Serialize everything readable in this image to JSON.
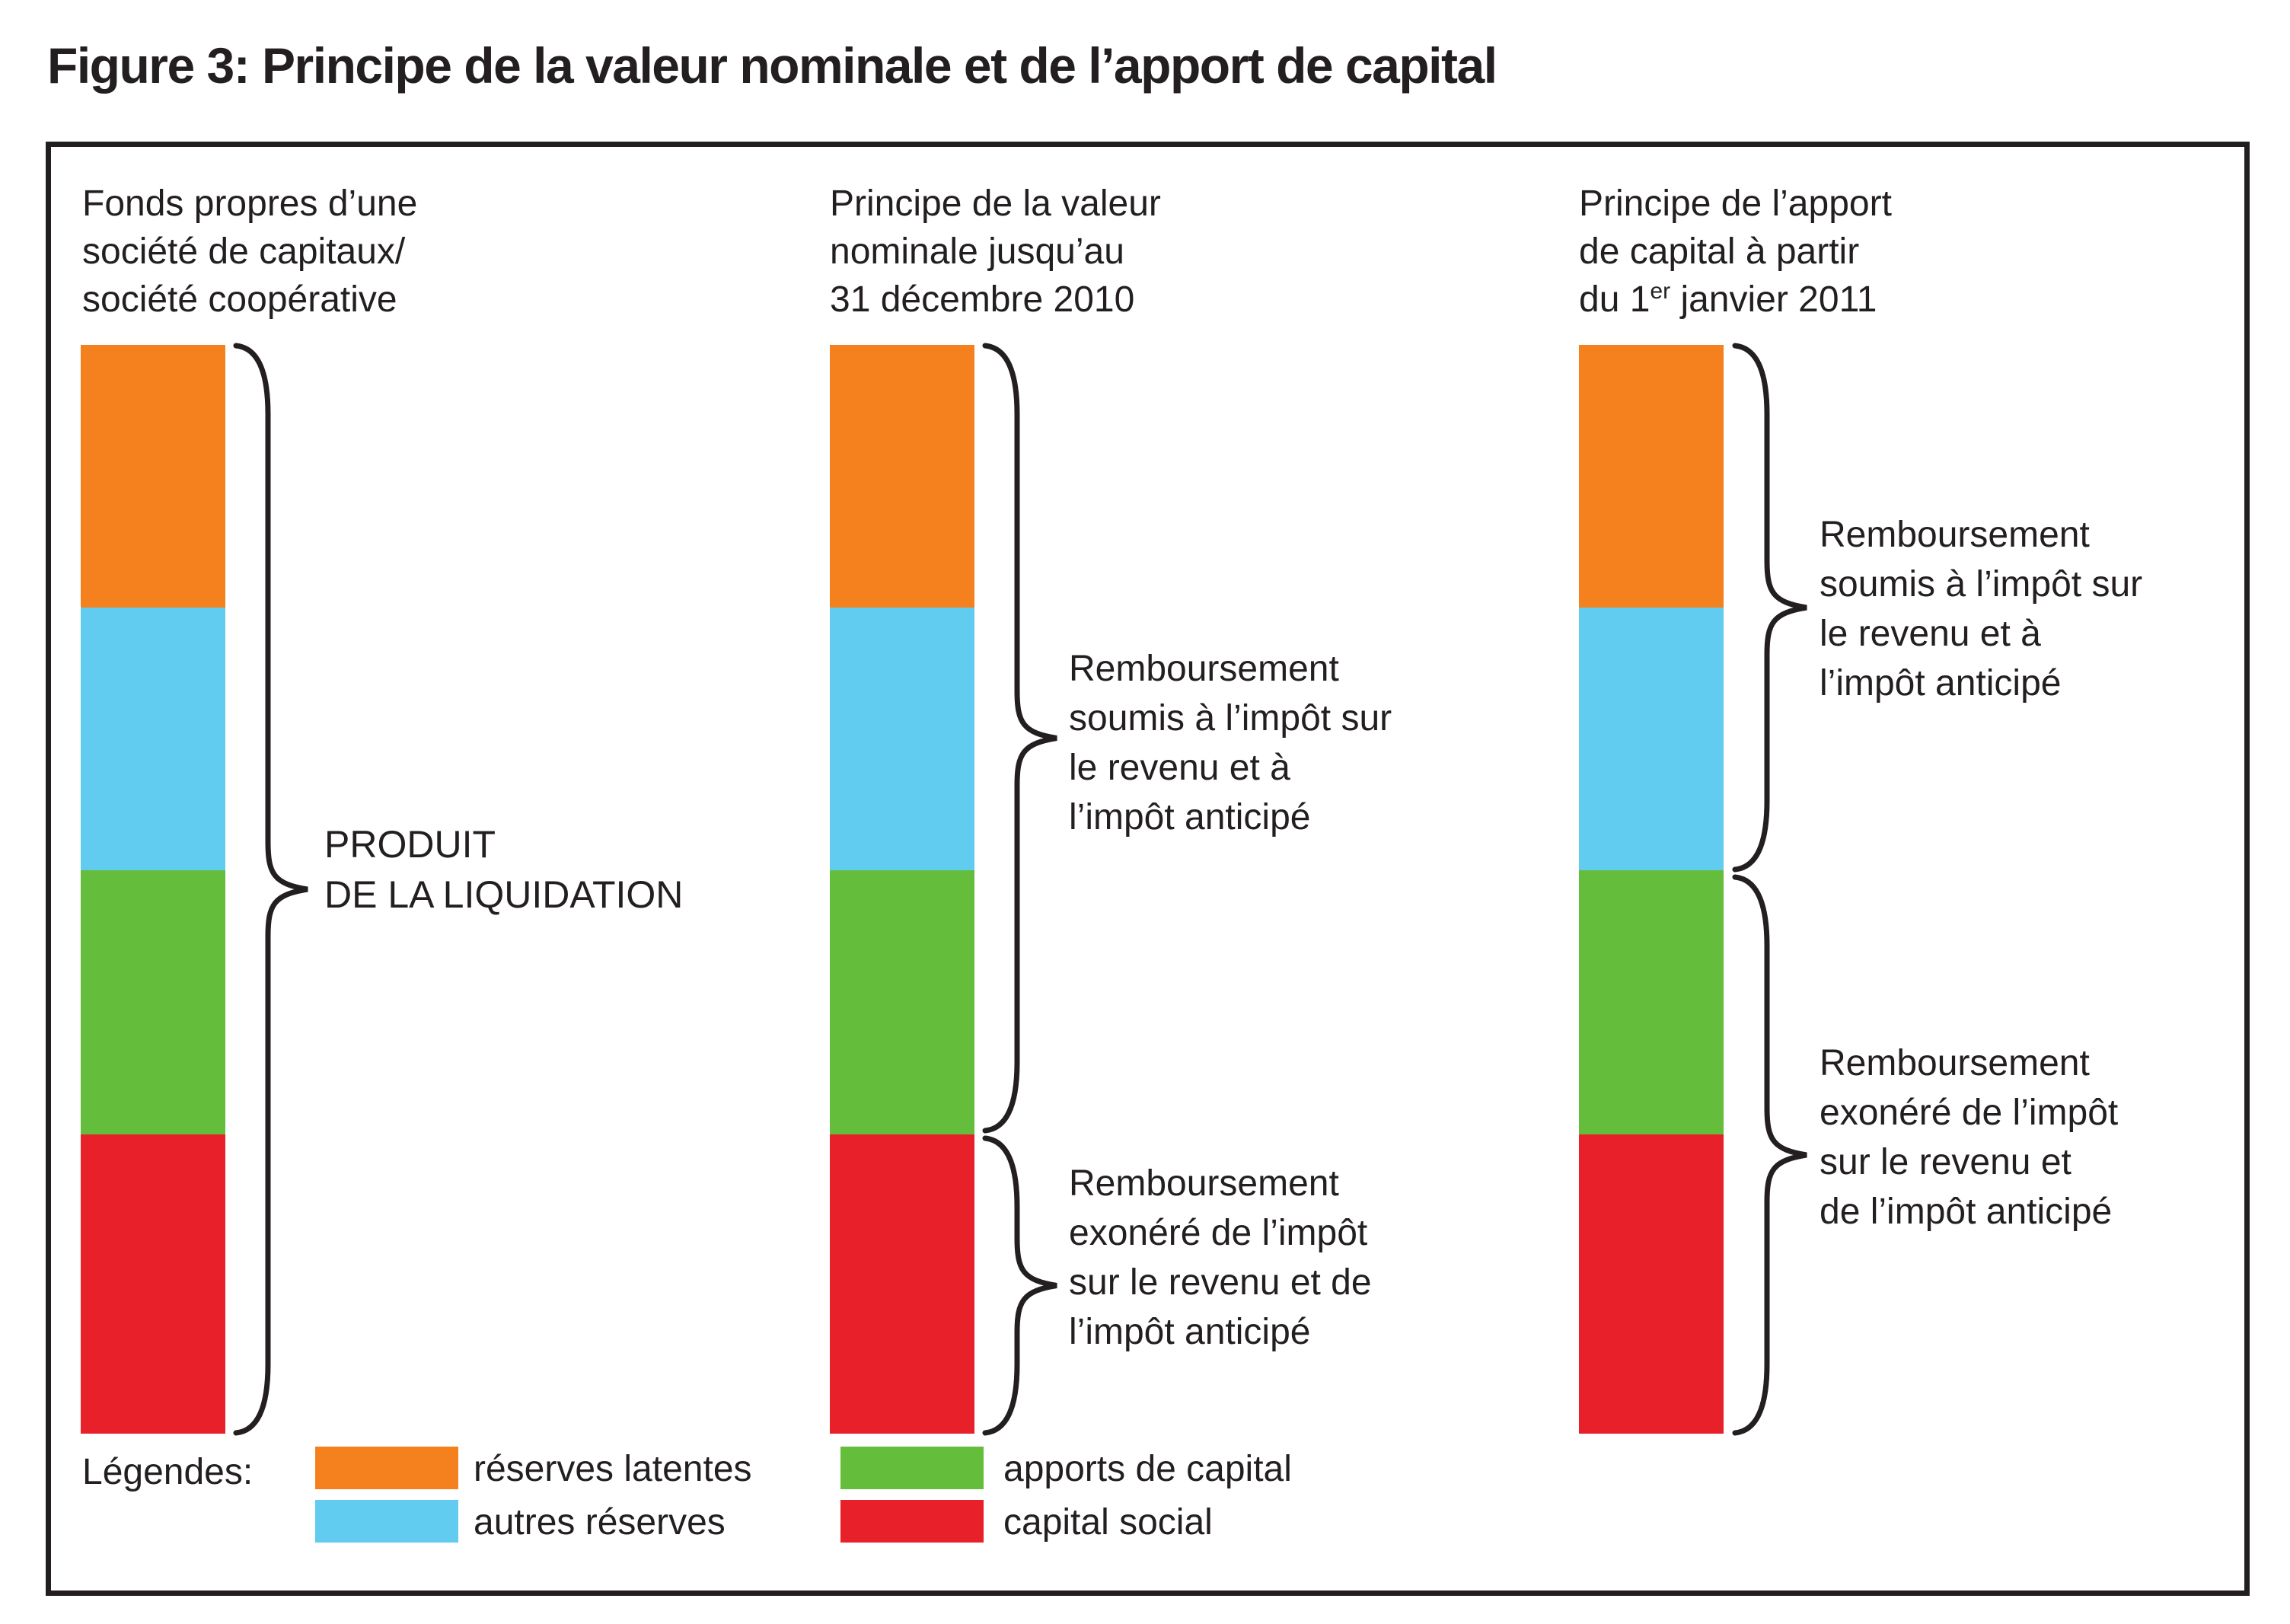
{
  "title": "Figure 3: Principe de la valeur nominale et de l’apport de capital",
  "colors": {
    "orange": "#F5811E",
    "blue": "#62CBF0",
    "green": "#65BE3B",
    "red": "#E7202A",
    "ink": "#231F20"
  },
  "bar_segments": [
    {
      "name": "réserves latentes",
      "color": "orange"
    },
    {
      "name": "autres réserves",
      "color": "blue"
    },
    {
      "name": "apports de capital",
      "color": "green"
    },
    {
      "name": "capital social",
      "color": "red"
    }
  ],
  "columns": [
    {
      "header_lines": [
        "Fonds propres d’une",
        "société de capitaux/",
        "société coopérative"
      ],
      "brace_labels": [
        {
          "lines": [
            "PRODUIT",
            "DE LA LIQUIDATION"
          ]
        }
      ]
    },
    {
      "header_lines": [
        "Principe de la valeur",
        "nominale jusqu’au",
        "31 décembre 2010"
      ],
      "brace_labels": [
        {
          "lines": [
            "Remboursement",
            "soumis à l’impôt sur",
            "le revenu et à",
            "l’impôt anticipé"
          ]
        },
        {
          "lines": [
            "Remboursement",
            "exonéré de l’impôt",
            "sur le revenu et de",
            "l’impôt anticipé"
          ]
        }
      ]
    },
    {
      "header_lines": [
        "Principe de l’apport",
        "de capital à partir"
      ],
      "header_line3": {
        "pre": "du 1",
        "sup": "er",
        "post": " janvier 2011"
      },
      "brace_labels": [
        {
          "lines": [
            "Remboursement",
            "soumis à l’impôt sur",
            "le revenu et à",
            "l’impôt anticipé"
          ]
        },
        {
          "lines": [
            "Remboursement",
            "exonéré de l’impôt",
            "sur le revenu et",
            "de l’impôt anticipé"
          ]
        }
      ]
    }
  ],
  "legend": {
    "label": "Légendes:",
    "items": [
      {
        "swatch": "orange",
        "label": "réserves latentes"
      },
      {
        "swatch": "blue",
        "label": "autres réserves"
      },
      {
        "swatch": "green",
        "label": "apports de capital"
      },
      {
        "swatch": "red",
        "label": "capital social"
      }
    ]
  }
}
